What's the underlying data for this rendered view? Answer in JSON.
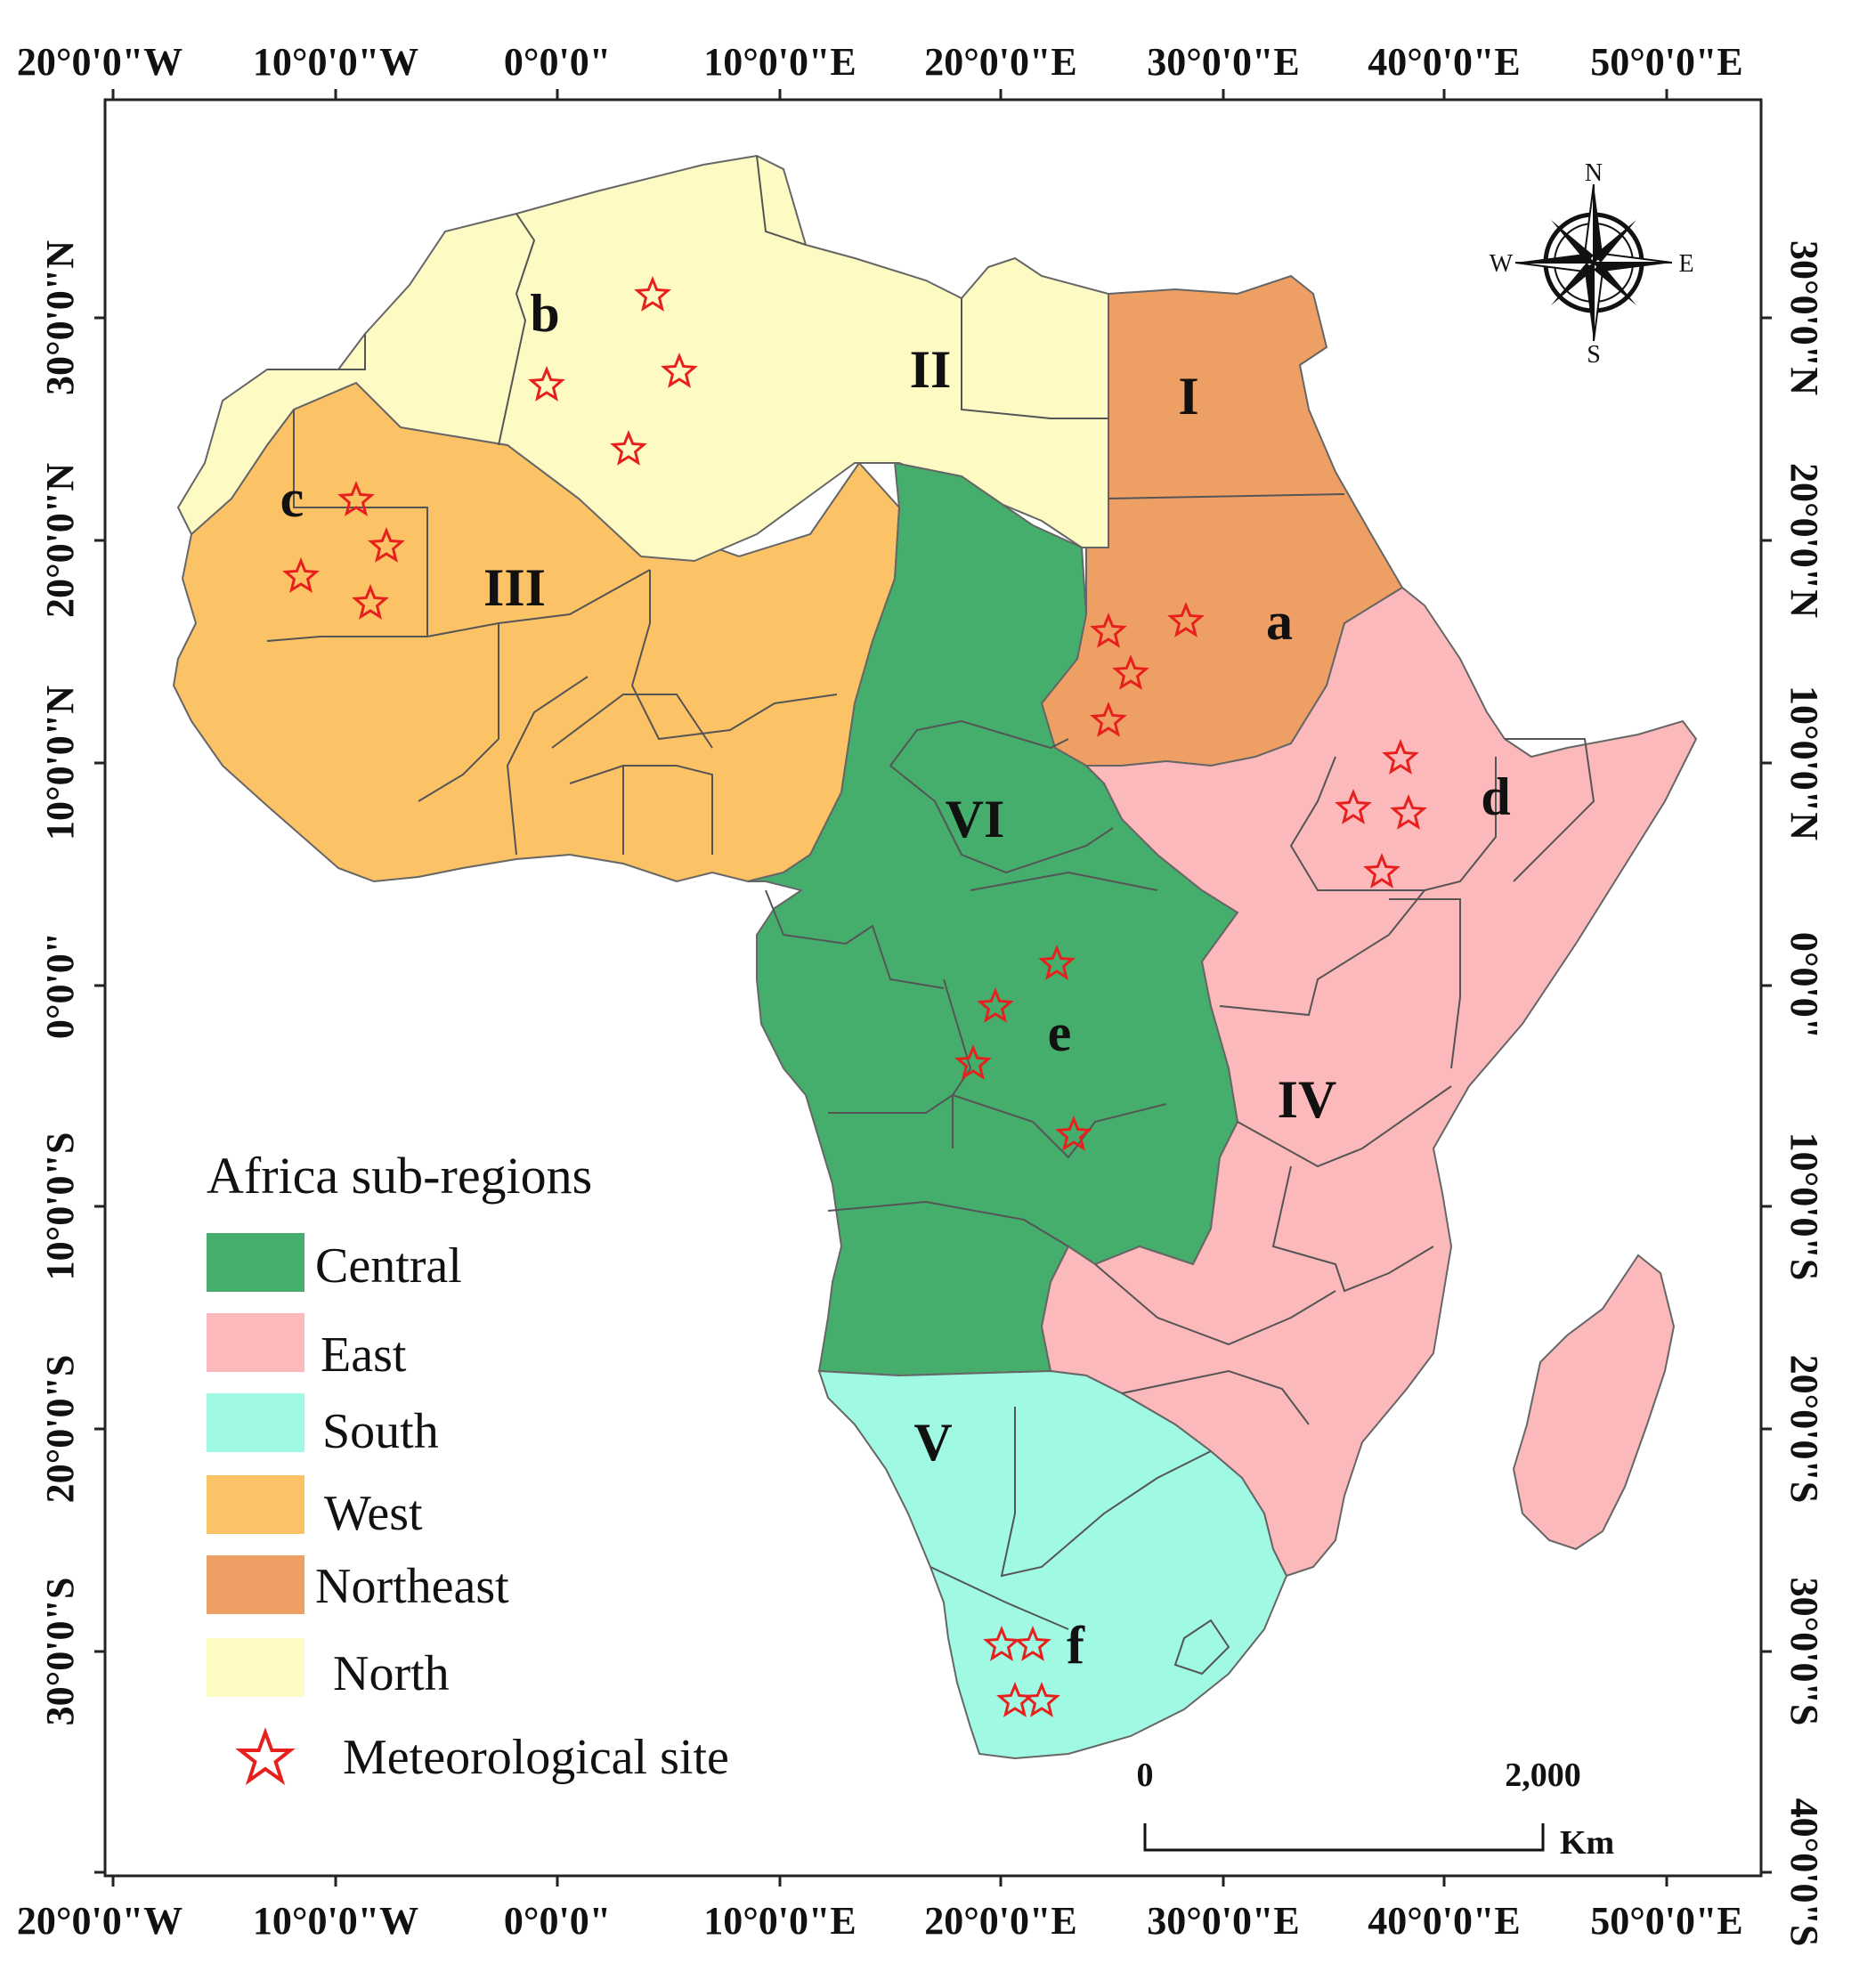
{
  "map": {
    "top_ticks": [
      "20°0'0\"W",
      "10°0'0\"W",
      "0°0'0\"",
      "10°0'0\"E",
      "20°0'0\"E",
      "30°0'0\"E",
      "40°0'0\"E",
      "50°0'0\"E"
    ],
    "bottom_ticks": [
      "20°0'0\"W",
      "10°0'0\"W",
      "0°0'0\"",
      "10°0'0\"E",
      "20°0'0\"E",
      "30°0'0\"E",
      "40°0'0\"E",
      "50°0'0\"E"
    ],
    "left_ticks": [
      "30°0'0\"N",
      "20°0'0\"N",
      "10°0'0\"N",
      "0°0'0\"",
      "10°0'0\"S",
      "20°0'0\"S",
      "30°0'0\"S"
    ],
    "right_ticks": [
      "30°0'0\"N",
      "20°0'0\"N",
      "10°0'0\"N",
      "0°0'0\"",
      "10°0'0\"S",
      "20°0'0\"S",
      "30°0'0\"S",
      "40°0'0\"S"
    ],
    "regions": [
      {
        "name": "North",
        "roman": "II",
        "letter": "b",
        "color": "#fdfbc3"
      },
      {
        "name": "Northeast",
        "roman": "I",
        "letter": "a",
        "color": "#eea064"
      },
      {
        "name": "West",
        "roman": "III",
        "letter": "c",
        "color": "#fcc266"
      },
      {
        "name": "Central",
        "roman": "VI",
        "letter": "e",
        "color": "#45ae6c"
      },
      {
        "name": "East",
        "roman": "IV",
        "letter": "d",
        "color": "#fcb9bc"
      },
      {
        "name": "South",
        "roman": "V",
        "letter": "f",
        "color": "#a0f9e3"
      }
    ],
    "site_color": "#e8201d"
  },
  "legend": {
    "title": "Africa sub-regions",
    "items": [
      {
        "label": "Central",
        "color": "#45ae6c"
      },
      {
        "label": "East",
        "color": "#fcb9bc"
      },
      {
        "label": "South",
        "color": "#a0f9e3"
      },
      {
        "label": "West",
        "color": "#fcc266"
      },
      {
        "label": "Northeast",
        "color": "#eea064"
      },
      {
        "label": "North",
        "color": "#fdfbc3"
      }
    ],
    "site_label": "Meteorological site"
  },
  "scale": {
    "start": "0",
    "end": "2,000",
    "unit": "Km"
  },
  "compass": {
    "n": "N",
    "s": "S",
    "e": "E",
    "w": "W"
  }
}
